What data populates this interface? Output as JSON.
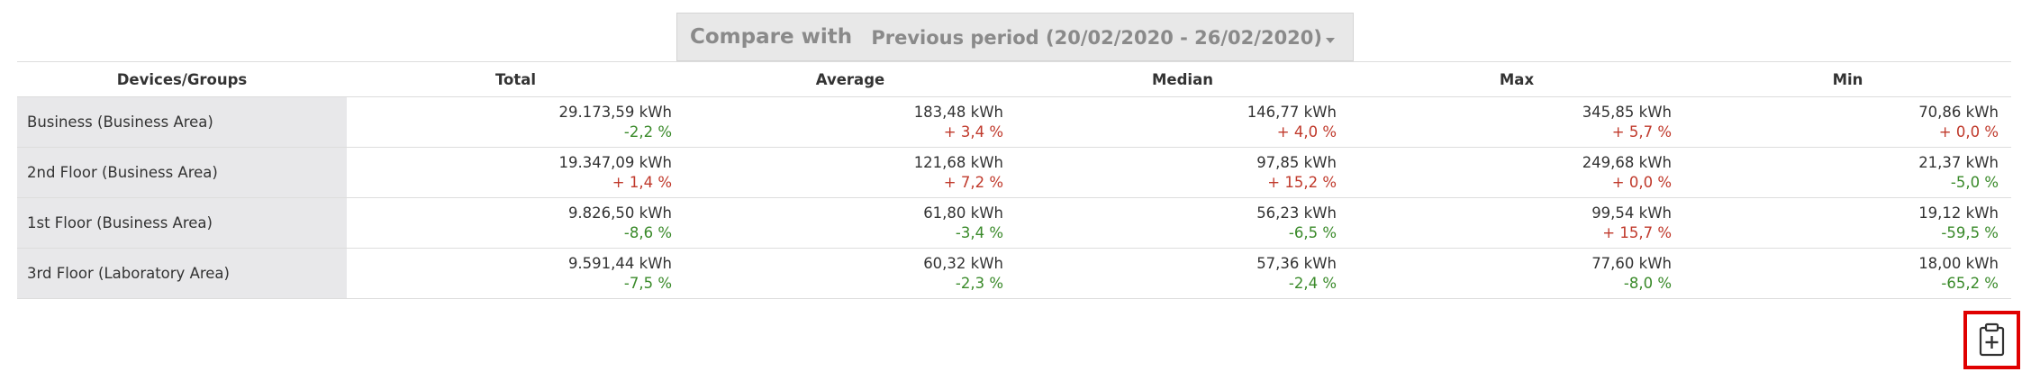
{
  "compare": {
    "label": "Compare with",
    "period": "Previous period (20/02/2020 - 26/02/2020)"
  },
  "table": {
    "columns": [
      "Devices/Groups",
      "Total",
      "Average",
      "Median",
      "Max",
      "Min"
    ],
    "rows": [
      {
        "label": "Business (Business Area)",
        "cells": [
          {
            "value": "29.173,59 kWh",
            "change": "-2,2 %"
          },
          {
            "value": "183,48 kWh",
            "change": "+ 3,4 %"
          },
          {
            "value": "146,77 kWh",
            "change": "+ 4,0 %"
          },
          {
            "value": "345,85 kWh",
            "change": "+ 5,7 %"
          },
          {
            "value": "70,86 kWh",
            "change": "+ 0,0 %"
          }
        ]
      },
      {
        "label": "2nd Floor (Business Area)",
        "cells": [
          {
            "value": "19.347,09 kWh",
            "change": "+ 1,4 %"
          },
          {
            "value": "121,68 kWh",
            "change": "+ 7,2 %"
          },
          {
            "value": "97,85 kWh",
            "change": "+ 15,2 %"
          },
          {
            "value": "249,68 kWh",
            "change": "+ 0,0 %"
          },
          {
            "value": "21,37 kWh",
            "change": "-5,0 %"
          }
        ]
      },
      {
        "label": "1st Floor (Business Area)",
        "cells": [
          {
            "value": "9.826,50 kWh",
            "change": "-8,6 %"
          },
          {
            "value": "61,80 kWh",
            "change": "-3,4 %"
          },
          {
            "value": "56,23 kWh",
            "change": "-6,5 %"
          },
          {
            "value": "99,54 kWh",
            "change": "+ 15,7 %"
          },
          {
            "value": "19,12 kWh",
            "change": "-59,5 %"
          }
        ]
      },
      {
        "label": "3rd Floor (Laboratory Area)",
        "cells": [
          {
            "value": "9.591,44 kWh",
            "change": "-7,5 %"
          },
          {
            "value": "60,32 kWh",
            "change": "-2,3 %"
          },
          {
            "value": "57,36 kWh",
            "change": "-2,4 %"
          },
          {
            "value": "77,60 kWh",
            "change": "-8,0 %"
          },
          {
            "value": "18,00 kWh",
            "change": "-65,2 %"
          }
        ]
      }
    ]
  }
}
